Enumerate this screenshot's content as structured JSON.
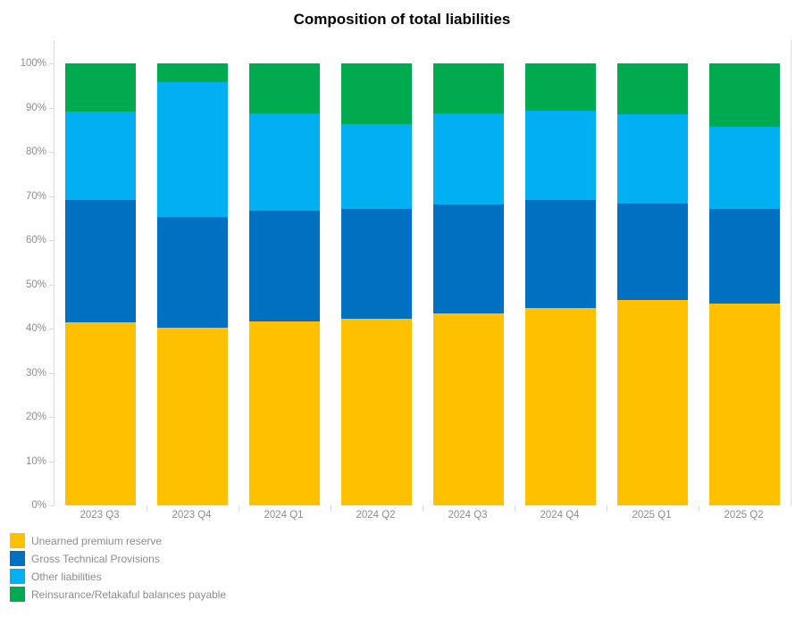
{
  "title": "Composition of total liabilities",
  "chart_data": {
    "type": "bar",
    "stacked": true,
    "percent": true,
    "title": "Composition of total liabilities",
    "categories": [
      "2023 Q3",
      "2023 Q4",
      "2024 Q1",
      "2024 Q2",
      "2024 Q3",
      "2024 Q4",
      "2025 Q1",
      "2025 Q2"
    ],
    "series": [
      {
        "name": "Unearned premium reserve",
        "color": "#FFC000",
        "values": [
          41.5,
          40.3,
          41.7,
          42.3,
          43.4,
          44.7,
          46.5,
          45.6
        ]
      },
      {
        "name": "Gross Technical Provisions",
        "color": "#0071C1",
        "values": [
          27.5,
          25.0,
          24.9,
          24.7,
          24.7,
          24.4,
          21.7,
          21.4
        ]
      },
      {
        "name": "Other liabilities",
        "color": "#00B0F0",
        "values": [
          20.0,
          30.5,
          22.0,
          19.2,
          20.5,
          20.2,
          20.2,
          18.6
        ]
      },
      {
        "name": "Reinsurance/Retakaful balances payable",
        "color": "#00AB50",
        "values": [
          11.0,
          4.2,
          11.4,
          13.8,
          11.4,
          10.7,
          11.6,
          14.4
        ]
      }
    ],
    "ylim": [
      0,
      100
    ],
    "y_ticks": [
      "0%",
      "10%",
      "20%",
      "30%",
      "40%",
      "50%",
      "60%",
      "70%",
      "80%",
      "90%",
      "100%"
    ],
    "xlabel": "",
    "ylabel": "",
    "grid": false,
    "legend_position": "bottom-left"
  }
}
